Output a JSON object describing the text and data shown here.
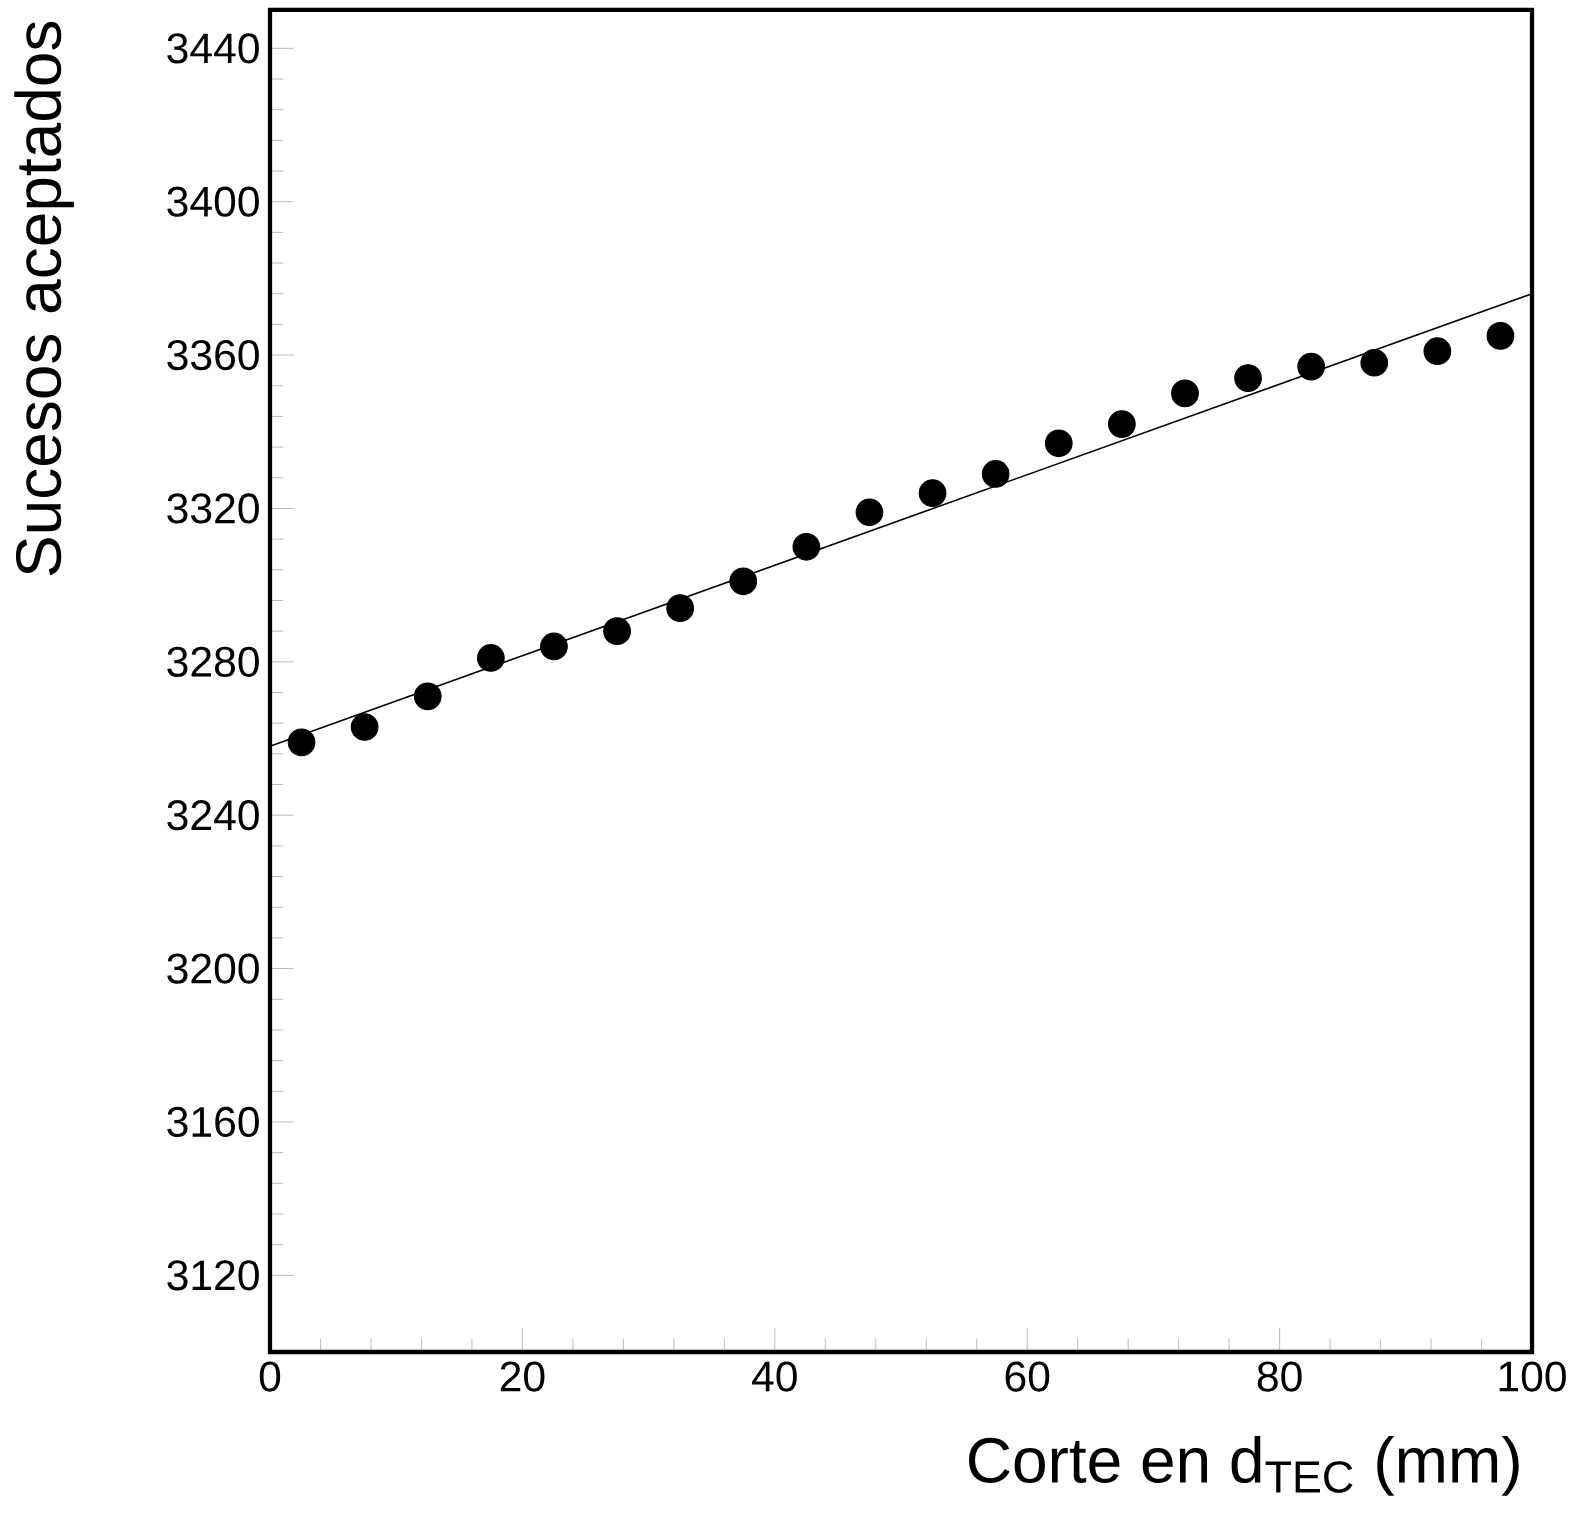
{
  "chart_data": {
    "type": "scatter",
    "xlabel": "Corte en d$_{TEC}$ (mm)",
    "ylabel": "Sucesos aceptados",
    "xlim": [
      0,
      100
    ],
    "ylim": [
      3100,
      3450
    ],
    "xticks": [
      0,
      20,
      40,
      60,
      80,
      100
    ],
    "yticks": [
      3120,
      3160,
      3200,
      3240,
      3280,
      3320,
      3360,
      3400,
      3440
    ],
    "marker": "circle",
    "grid": false,
    "series": [
      {
        "color": "#000000",
        "x": [
          2.5,
          7.5,
          12.5,
          17.5,
          22.5,
          27.5,
          32.5,
          37.5,
          42.5,
          47.5,
          52.5,
          57.5,
          62.5,
          67.5,
          72.5,
          77.5,
          82.5,
          87.5,
          92.5,
          97.5
        ],
        "values": [
          3259,
          3263,
          3271,
          3281,
          3284,
          3288,
          3294,
          3301,
          3310,
          3319,
          3324,
          3329,
          3337,
          3342,
          3350,
          3354,
          3357,
          3358,
          3361,
          3365
        ]
      },
      {
        "type": "line",
        "color": "#000000",
        "marker": "none",
        "x": [
          0,
          100
        ],
        "values": [
          3258,
          3376
        ]
      }
    ]
  }
}
